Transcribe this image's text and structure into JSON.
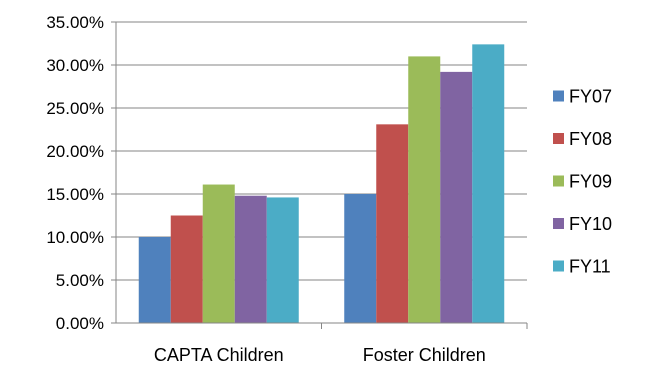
{
  "chart_data": {
    "type": "bar",
    "title": "",
    "xlabel": "",
    "ylabel": "",
    "categories": [
      "CAPTA Children",
      "Foster Children"
    ],
    "series": [
      {
        "name": "FY07",
        "values": [
          0.1,
          0.15
        ],
        "color": "#4F81BD"
      },
      {
        "name": "FY08",
        "values": [
          0.125,
          0.231
        ],
        "color": "#C0504D"
      },
      {
        "name": "FY09",
        "values": [
          0.161,
          0.31
        ],
        "color": "#9BBB59"
      },
      {
        "name": "FY10",
        "values": [
          0.148,
          0.292
        ],
        "color": "#8064A2"
      },
      {
        "name": "FY11",
        "values": [
          0.146,
          0.324
        ],
        "color": "#4BACC6"
      }
    ],
    "ylim": [
      0,
      0.35
    ],
    "yticks": [
      "0.00%",
      "5.00%",
      "10.00%",
      "15.00%",
      "20.00%",
      "25.00%",
      "30.00%",
      "35.00%"
    ],
    "grid": true,
    "legend_position": "right"
  }
}
